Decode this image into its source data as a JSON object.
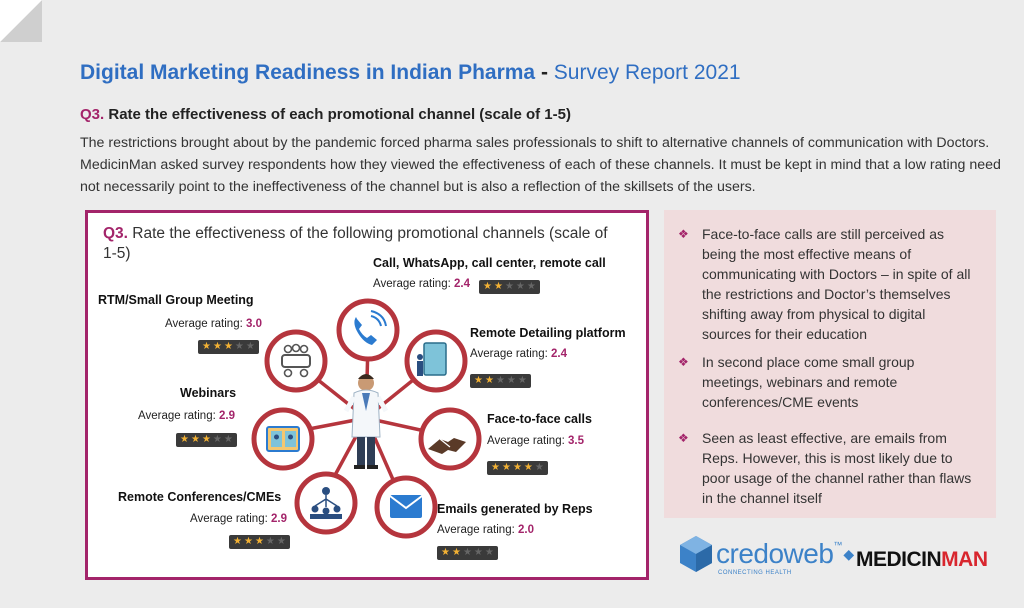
{
  "header": {
    "title_main": "Digital Marketing Readiness in Indian Pharma",
    "title_dash": " - ",
    "title_sub": "Survey Report 2021"
  },
  "question": {
    "prefix": "Q3.",
    "text": " Rate the effectiveness of each promotional channel (scale of 1-5)"
  },
  "intro": "The restrictions brought about by the pandemic forced pharma sales professionals to shift to alternative channels of communication with Doctors. MedicinMan asked survey respondents how they viewed the effectiveness of each of these channels. It must be kept in mind that a low rating need not necessarily point to the ineffectiveness of the channel but is also a reflection of the skillsets of the users.",
  "card": {
    "q_prefix": "Q3.",
    "q_text": " Rate the effectiveness of the following promotional channels (scale of 1-5)",
    "rating_label": "Average rating: ",
    "channels": [
      {
        "name": "Call, WhatsApp, call center, remote call",
        "rating": "2.4",
        "value": 2.4,
        "icon": "phone-icon"
      },
      {
        "name": "RTM/Small Group Meeting",
        "rating": "3.0",
        "value": 3.0,
        "icon": "meeting-table-icon"
      },
      {
        "name": "Remote Detailing platform",
        "rating": "2.4",
        "value": 2.4,
        "icon": "tablet-detailing-icon"
      },
      {
        "name": "Webinars",
        "rating": "2.9",
        "value": 2.9,
        "icon": "webinar-screen-icon"
      },
      {
        "name": "Face-to-face calls",
        "rating": "3.5",
        "value": 3.5,
        "icon": "handshake-icon"
      },
      {
        "name": "Remote Conferences/CMEs",
        "rating": "2.9",
        "value": 2.9,
        "icon": "conference-network-icon"
      },
      {
        "name": "Emails generated by Reps",
        "rating": "2.0",
        "value": 2.0,
        "icon": "envelope-icon"
      }
    ]
  },
  "insights": [
    "Face-to-face calls are still perceived as being the most effective means of communicating with Doctors – in spite of all the restrictions and Doctor’s themselves shifting away from physical to digital sources for their education",
    "In second place come small group meetings, webinars and remote conferences/CME events",
    "Seen as least effective, are emails from Reps. However, this is most likely due to poor usage of the channel rather than flaws in the channel itself"
  ],
  "logos": {
    "credoweb": "credoweb",
    "credoweb_tm": "™",
    "credoweb_tagline": "CONNECTING HEALTH",
    "medicinman_a": "MEDICIN",
    "medicinman_b": "MAN"
  },
  "colors": {
    "title_blue": "#2f6ec2",
    "accent_magenta": "#a3246a",
    "circle_red": "#b5353d",
    "panel_pink": "#f0dcdd",
    "star_gold": "#f2b134"
  }
}
